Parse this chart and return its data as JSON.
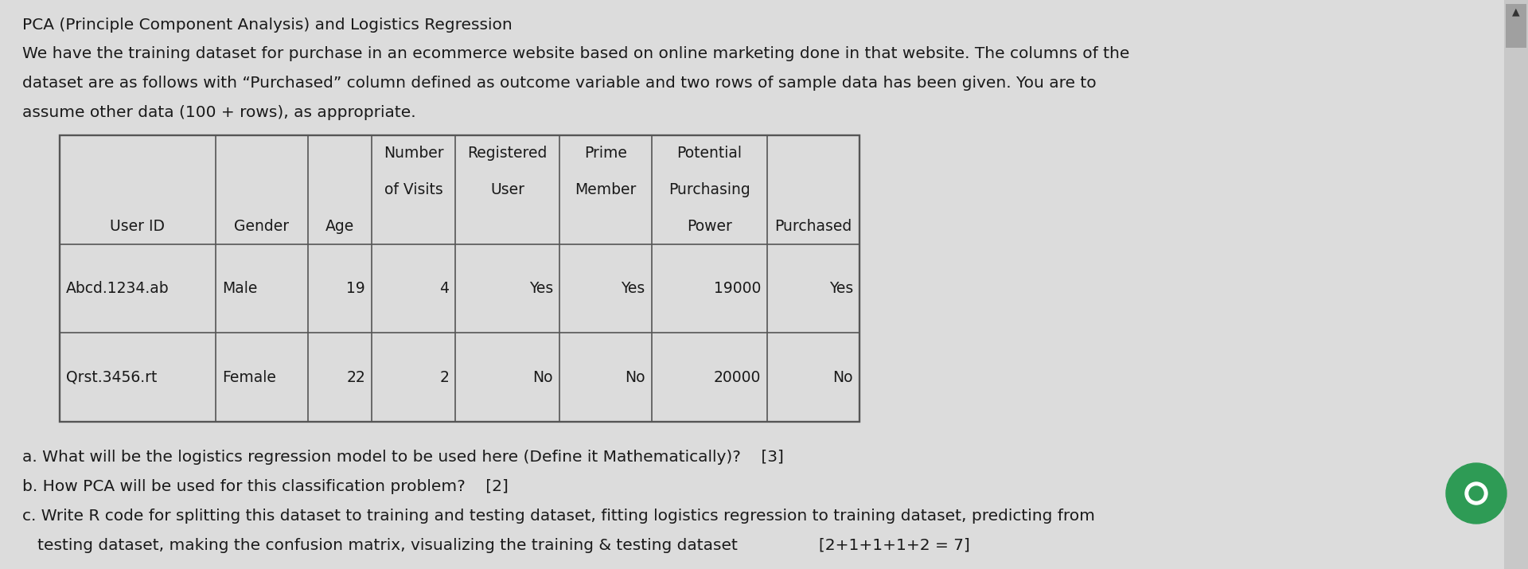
{
  "bg_color": "#d8d8d8",
  "content_bg": "#e8e8e8",
  "title_text": "PCA (Principle Component Analysis) and Logistics Regression",
  "para_line1": "We have the training dataset for purchase in an ecommerce website based on online marketing done in that website. The columns of the",
  "para_line2": "dataset are as follows with “Purchased” column defined as outcome variable and two rows of sample data has been given. You are to",
  "para_line3": "assume other data (100 + rows), as appropriate.",
  "col_header_row1": [
    "",
    "",
    "",
    "Number",
    "Registered",
    "Prime",
    "Potential",
    ""
  ],
  "col_header_row2": [
    "",
    "",
    "",
    "of Visits",
    "User",
    "Member",
    "Purchasing",
    ""
  ],
  "col_header_row3": [
    "User ID",
    "Gender",
    "Age",
    "",
    "",
    "",
    "Power",
    "Purchased"
  ],
  "table_data": [
    [
      "Abcd.1234.ab",
      "Male",
      "19",
      "4",
      "Yes",
      "Yes",
      "19000",
      "Yes"
    ],
    [
      "Qrst.3456.rt",
      "Female",
      "22",
      "2",
      "No",
      "No",
      "20000",
      "No"
    ]
  ],
  "q1": "a. What will be the logistics regression model to be used here (Define it Mathematically)?    [3]",
  "q2": "b. How PCA will be used for this classification problem?    [2]",
  "q3a": "c. Write R code for splitting this dataset to training and testing dataset, fitting logistics regression to training dataset, predicting from",
  "q3b": "   testing dataset, making the confusion matrix, visualizing the training & testing dataset                [2+1+1+1+2 = 7]",
  "font_color": "#1a1a1a",
  "table_border_color": "#555555",
  "text_fontsize": 14.5,
  "title_fontsize": 14.5,
  "cell_fontsize": 13.5,
  "scrollbar_color": "#a0a0a0",
  "scrollbar_bg": "#c8c8c8",
  "green_button_color": "#2e9b55",
  "scroll_arrow_color": "#333333"
}
